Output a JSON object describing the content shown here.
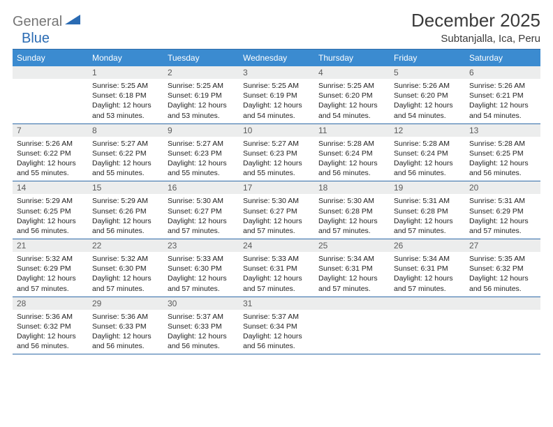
{
  "logo": {
    "part1": "General",
    "part2": "Blue"
  },
  "title": "December 2025",
  "location": "Subtanjalla, Ica, Peru",
  "header_bg": "#3b8bd0",
  "header_text_color": "#ffffff",
  "rule_color": "#2f6aa8",
  "daynum_bg": "#eceded",
  "weekdays": [
    "Sunday",
    "Monday",
    "Tuesday",
    "Wednesday",
    "Thursday",
    "Friday",
    "Saturday"
  ],
  "weeks": [
    {
      "nums": [
        "",
        "1",
        "2",
        "3",
        "4",
        "5",
        "6"
      ],
      "cells": [
        null,
        {
          "sunrise": "5:25 AM",
          "sunset": "6:18 PM",
          "daylight": "12 hours and 53 minutes."
        },
        {
          "sunrise": "5:25 AM",
          "sunset": "6:19 PM",
          "daylight": "12 hours and 53 minutes."
        },
        {
          "sunrise": "5:25 AM",
          "sunset": "6:19 PM",
          "daylight": "12 hours and 54 minutes."
        },
        {
          "sunrise": "5:25 AM",
          "sunset": "6:20 PM",
          "daylight": "12 hours and 54 minutes."
        },
        {
          "sunrise": "5:26 AM",
          "sunset": "6:20 PM",
          "daylight": "12 hours and 54 minutes."
        },
        {
          "sunrise": "5:26 AM",
          "sunset": "6:21 PM",
          "daylight": "12 hours and 54 minutes."
        }
      ]
    },
    {
      "nums": [
        "7",
        "8",
        "9",
        "10",
        "11",
        "12",
        "13"
      ],
      "cells": [
        {
          "sunrise": "5:26 AM",
          "sunset": "6:22 PM",
          "daylight": "12 hours and 55 minutes."
        },
        {
          "sunrise": "5:27 AM",
          "sunset": "6:22 PM",
          "daylight": "12 hours and 55 minutes."
        },
        {
          "sunrise": "5:27 AM",
          "sunset": "6:23 PM",
          "daylight": "12 hours and 55 minutes."
        },
        {
          "sunrise": "5:27 AM",
          "sunset": "6:23 PM",
          "daylight": "12 hours and 55 minutes."
        },
        {
          "sunrise": "5:28 AM",
          "sunset": "6:24 PM",
          "daylight": "12 hours and 56 minutes."
        },
        {
          "sunrise": "5:28 AM",
          "sunset": "6:24 PM",
          "daylight": "12 hours and 56 minutes."
        },
        {
          "sunrise": "5:28 AM",
          "sunset": "6:25 PM",
          "daylight": "12 hours and 56 minutes."
        }
      ]
    },
    {
      "nums": [
        "14",
        "15",
        "16",
        "17",
        "18",
        "19",
        "20"
      ],
      "cells": [
        {
          "sunrise": "5:29 AM",
          "sunset": "6:25 PM",
          "daylight": "12 hours and 56 minutes."
        },
        {
          "sunrise": "5:29 AM",
          "sunset": "6:26 PM",
          "daylight": "12 hours and 56 minutes."
        },
        {
          "sunrise": "5:30 AM",
          "sunset": "6:27 PM",
          "daylight": "12 hours and 57 minutes."
        },
        {
          "sunrise": "5:30 AM",
          "sunset": "6:27 PM",
          "daylight": "12 hours and 57 minutes."
        },
        {
          "sunrise": "5:30 AM",
          "sunset": "6:28 PM",
          "daylight": "12 hours and 57 minutes."
        },
        {
          "sunrise": "5:31 AM",
          "sunset": "6:28 PM",
          "daylight": "12 hours and 57 minutes."
        },
        {
          "sunrise": "5:31 AM",
          "sunset": "6:29 PM",
          "daylight": "12 hours and 57 minutes."
        }
      ]
    },
    {
      "nums": [
        "21",
        "22",
        "23",
        "24",
        "25",
        "26",
        "27"
      ],
      "cells": [
        {
          "sunrise": "5:32 AM",
          "sunset": "6:29 PM",
          "daylight": "12 hours and 57 minutes."
        },
        {
          "sunrise": "5:32 AM",
          "sunset": "6:30 PM",
          "daylight": "12 hours and 57 minutes."
        },
        {
          "sunrise": "5:33 AM",
          "sunset": "6:30 PM",
          "daylight": "12 hours and 57 minutes."
        },
        {
          "sunrise": "5:33 AM",
          "sunset": "6:31 PM",
          "daylight": "12 hours and 57 minutes."
        },
        {
          "sunrise": "5:34 AM",
          "sunset": "6:31 PM",
          "daylight": "12 hours and 57 minutes."
        },
        {
          "sunrise": "5:34 AM",
          "sunset": "6:31 PM",
          "daylight": "12 hours and 57 minutes."
        },
        {
          "sunrise": "5:35 AM",
          "sunset": "6:32 PM",
          "daylight": "12 hours and 56 minutes."
        }
      ]
    },
    {
      "nums": [
        "28",
        "29",
        "30",
        "31",
        "",
        "",
        ""
      ],
      "cells": [
        {
          "sunrise": "5:36 AM",
          "sunset": "6:32 PM",
          "daylight": "12 hours and 56 minutes."
        },
        {
          "sunrise": "5:36 AM",
          "sunset": "6:33 PM",
          "daylight": "12 hours and 56 minutes."
        },
        {
          "sunrise": "5:37 AM",
          "sunset": "6:33 PM",
          "daylight": "12 hours and 56 minutes."
        },
        {
          "sunrise": "5:37 AM",
          "sunset": "6:34 PM",
          "daylight": "12 hours and 56 minutes."
        },
        null,
        null,
        null
      ]
    }
  ],
  "labels": {
    "sunrise": "Sunrise: ",
    "sunset": "Sunset: ",
    "daylight": "Daylight: "
  }
}
